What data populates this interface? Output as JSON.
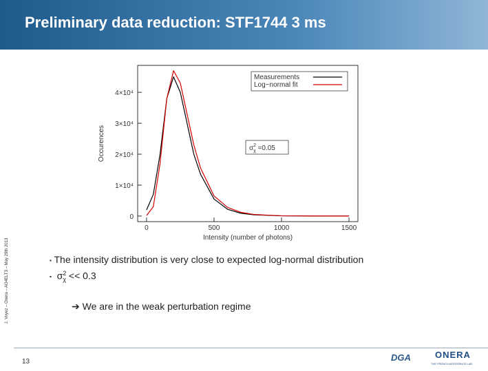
{
  "slide": {
    "title": "Preliminary data reduction: STF1744 3 ms",
    "side_note": "J. Voyez – Onera – AO4ELT3 – May 29th 2013",
    "bullet_1": "The intensity distribution is very close to expected log-normal distribution",
    "bullet_2": {
      "symbol": "σ",
      "sup": "2",
      "sub": "χ",
      "text": " << 0.3"
    },
    "conclusion": "We are in the weak perturbation regime",
    "page_number": "13",
    "logo_onera": "ONERA",
    "logo_onera_tagline": "THE FRENCH AEROSPACE LAB",
    "logo_dga": "DGA"
  },
  "chart_data": {
    "type": "line",
    "x_label": "Intensity (number of photons)",
    "y_label": "Occurences",
    "annotation": {
      "symbol": "σ",
      "sup": "2",
      "sub": "χ",
      "text": " =0.05"
    },
    "x": [
      0,
      50,
      100,
      150,
      200,
      250,
      300,
      350,
      400,
      500,
      600,
      700,
      800,
      1000,
      1200,
      1500
    ],
    "series": [
      {
        "name": "Measurements",
        "color": "#000000",
        "values": [
          2000,
          7000,
          20000,
          38000,
          45000,
          40000,
          30000,
          20000,
          13500,
          5500,
          2200,
          900,
          400,
          80,
          20,
          0
        ]
      },
      {
        "name": "Log−normal fit",
        "color": "#d40000",
        "values": [
          200,
          3000,
          17000,
          38000,
          47000,
          43000,
          33000,
          23000,
          15500,
          6500,
          2800,
          1200,
          500,
          100,
          30,
          5
        ]
      }
    ],
    "xlim": [
      -66,
      1566
    ],
    "xticks": [
      0,
      500,
      1000,
      1500
    ],
    "ylim": [
      -1800,
      48700
    ],
    "yticks": [
      0,
      {
        "value": 10000,
        "label": "1×10⁴"
      },
      {
        "value": 20000,
        "label": "2×10⁴"
      },
      {
        "value": 30000,
        "label": "3×10⁴"
      },
      {
        "value": 40000,
        "label": "4×10⁴"
      }
    ],
    "legend": "top-right"
  }
}
